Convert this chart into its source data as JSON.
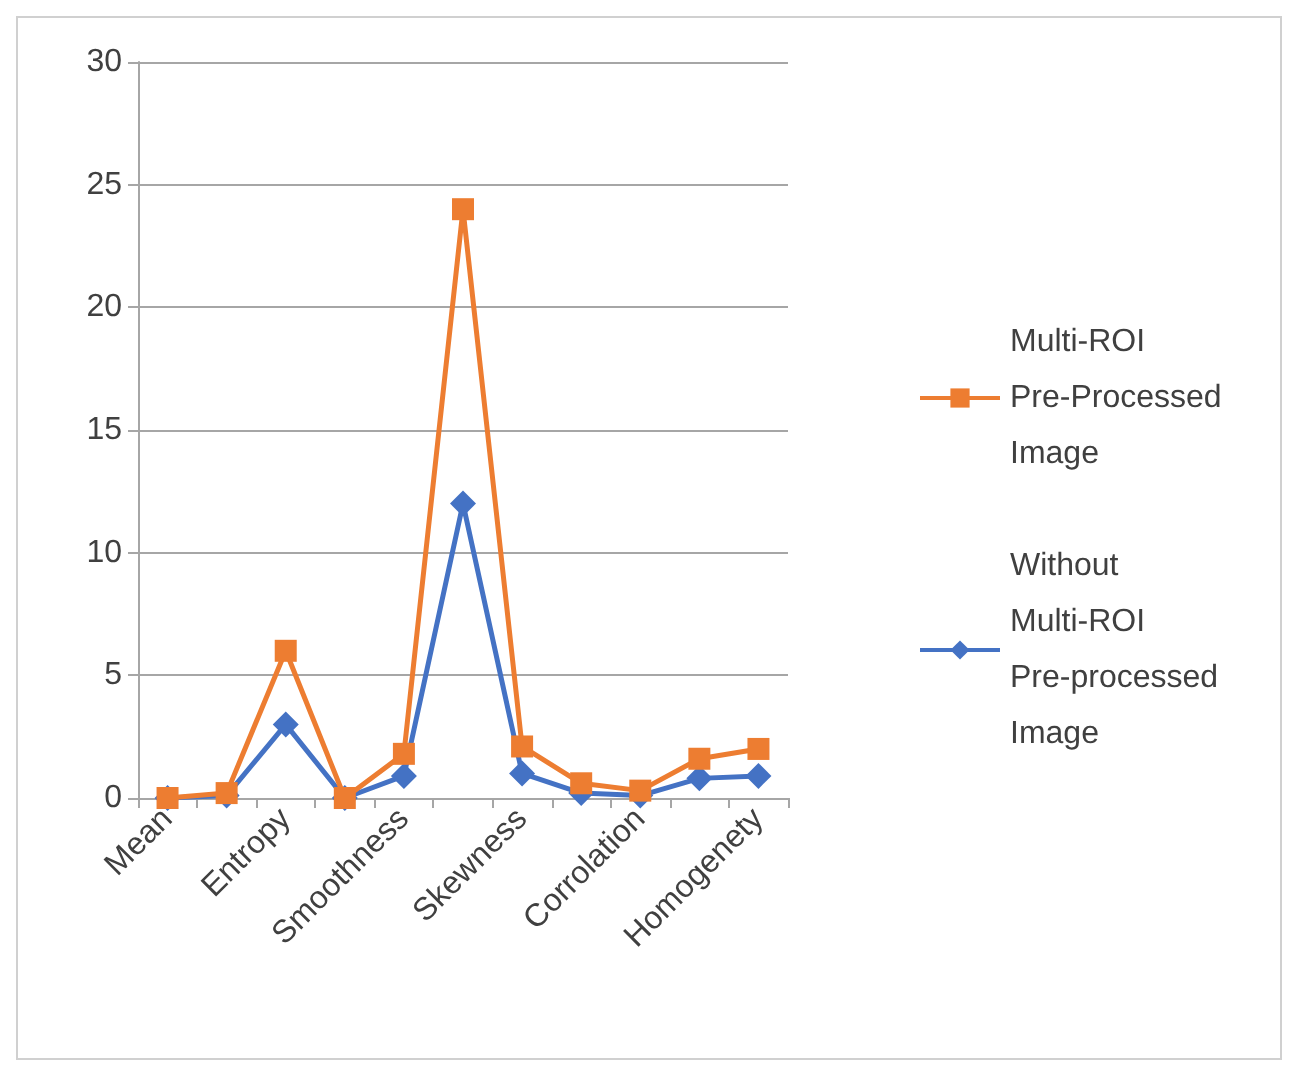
{
  "chart_data": {
    "type": "line",
    "categories": [
      "Mean",
      null,
      "Entropy",
      null,
      "Smoothness",
      null,
      "Skewness",
      null,
      "Corrolation",
      null,
      "Homogenety"
    ],
    "series": [
      {
        "name": "Multi-ROI Pre-Processed Image",
        "color": "#ed7d31",
        "marker": "square",
        "values": [
          0,
          0.2,
          6,
          0,
          1.8,
          24,
          2.1,
          0.6,
          0.3,
          1.6,
          2
        ]
      },
      {
        "name": "Without Multi-ROI Pre-processed Image",
        "color": "#4472c4",
        "marker": "diamond",
        "values": [
          0,
          0.1,
          3,
          0,
          0.9,
          12,
          1,
          0.2,
          0.1,
          0.8,
          0.9
        ]
      }
    ],
    "ylim": [
      0,
      30
    ],
    "yticks": [
      0,
      5,
      10,
      15,
      20,
      25,
      30
    ],
    "grid": "y",
    "legend": "right"
  }
}
